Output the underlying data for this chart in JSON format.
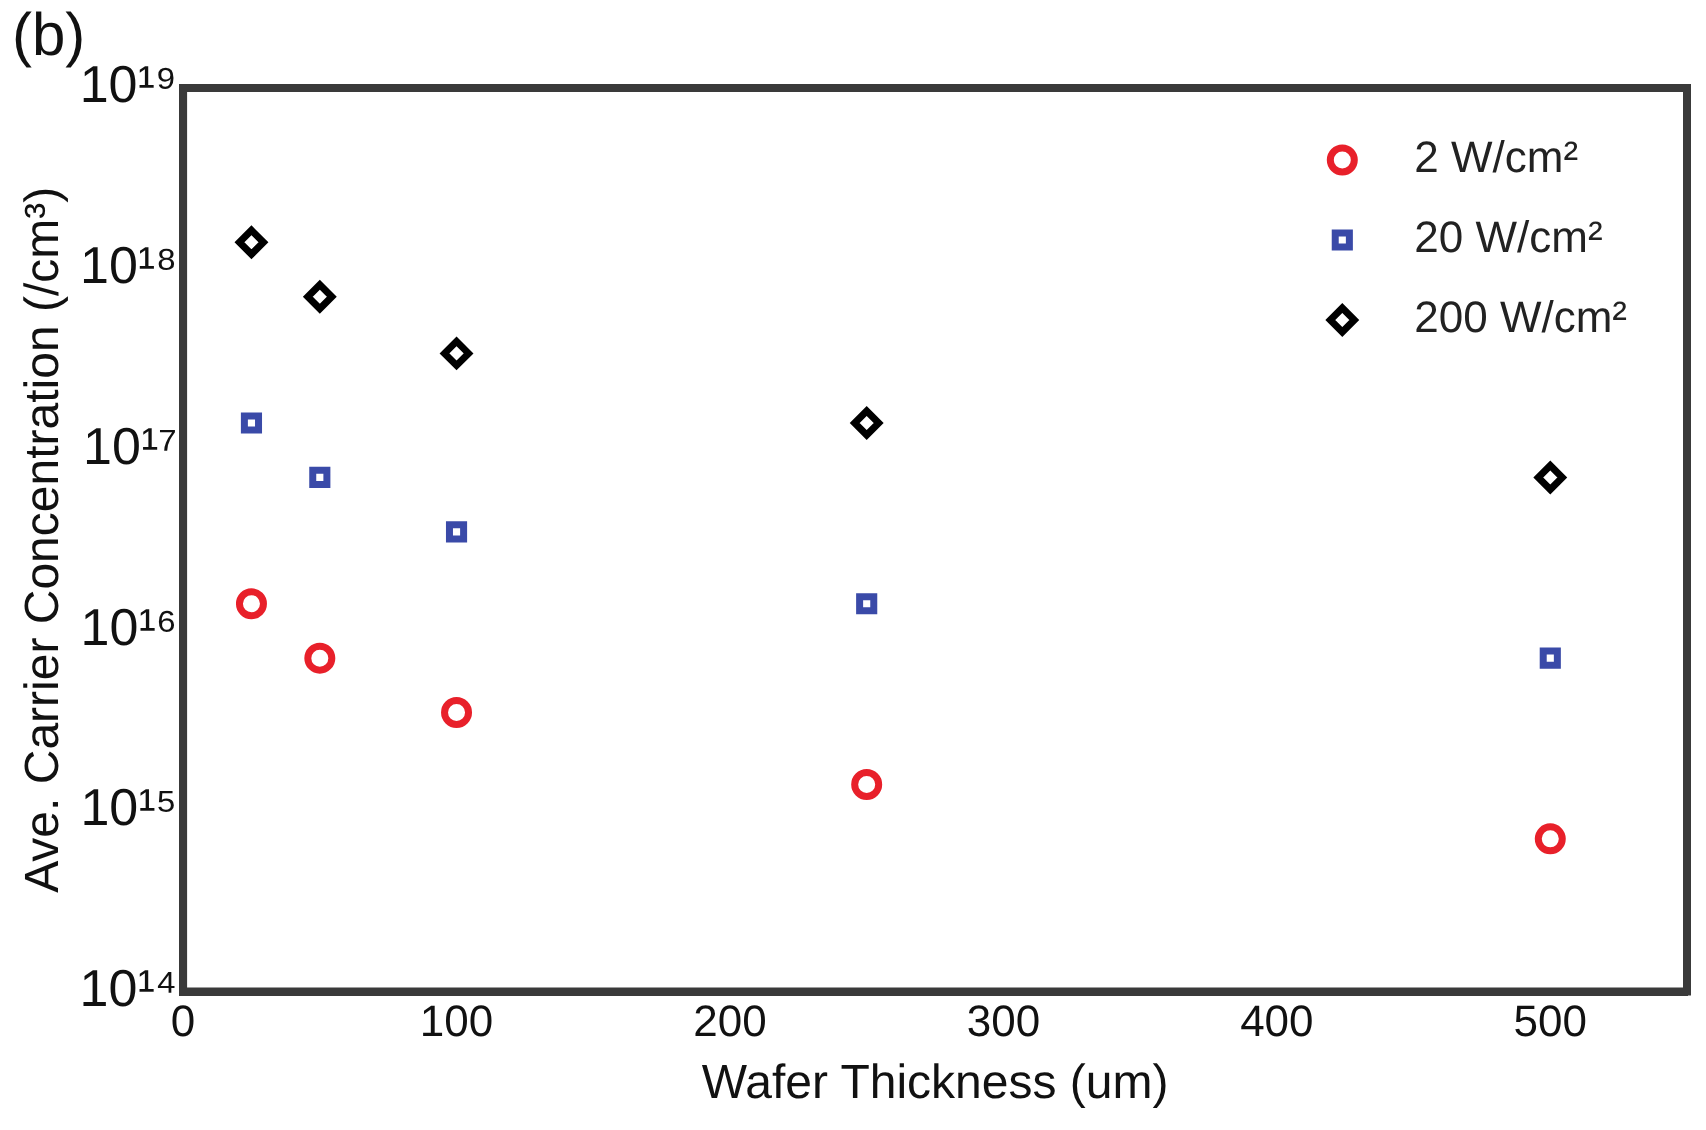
{
  "chart_data": {
    "type": "scatter",
    "xlabel": "Wafer Thickness (um)",
    "ylabel": "Ave. Carrier Concentration (/cm³)",
    "annotations": [
      "(b)"
    ],
    "log": "y",
    "xlim": [
      0,
      550
    ],
    "xticks": [
      0,
      100,
      200,
      300,
      400,
      500
    ],
    "ylim": [
      100000000000000.0,
      1e+19
    ],
    "yticks": [
      {
        "value": 100000000000000.0,
        "label": "10¹⁴"
      },
      {
        "value": 1000000000000000.0,
        "label": "10¹⁵"
      },
      {
        "value": 1e+16,
        "label": "10¹⁶"
      },
      {
        "value": 1e+17,
        "label": "10¹⁷"
      },
      {
        "value": 1e+18,
        "label": "10¹⁸"
      },
      {
        "value": 1e+19,
        "label": "10¹⁹"
      }
    ],
    "grid": false,
    "legend": "top right",
    "series": [
      {
        "name": "2 W/cm²",
        "color": "#e8202a",
        "marker": "circle",
        "x": [
          25,
          50,
          100,
          250,
          500
        ],
        "values": [
          1.4e+16,
          7000000000000000.0,
          3500000000000000.0,
          1400000000000000.0,
          700000000000000.0
        ]
      },
      {
        "name": "20 W/cm²",
        "color": "#3a4aa8",
        "marker": "square",
        "x": [
          25,
          50,
          100,
          250,
          500
        ],
        "values": [
          1.4e+17,
          7e+16,
          3.5e+16,
          1.4e+16,
          7000000000000000.0
        ]
      },
      {
        "name": "200 W/cm²",
        "color": "#000000",
        "marker": "diamond",
        "x": [
          25,
          50,
          100,
          250,
          500
        ],
        "values": [
          1.4e+18,
          7e+17,
          3.4e+17,
          1.4e+17,
          7e+16
        ]
      }
    ]
  }
}
